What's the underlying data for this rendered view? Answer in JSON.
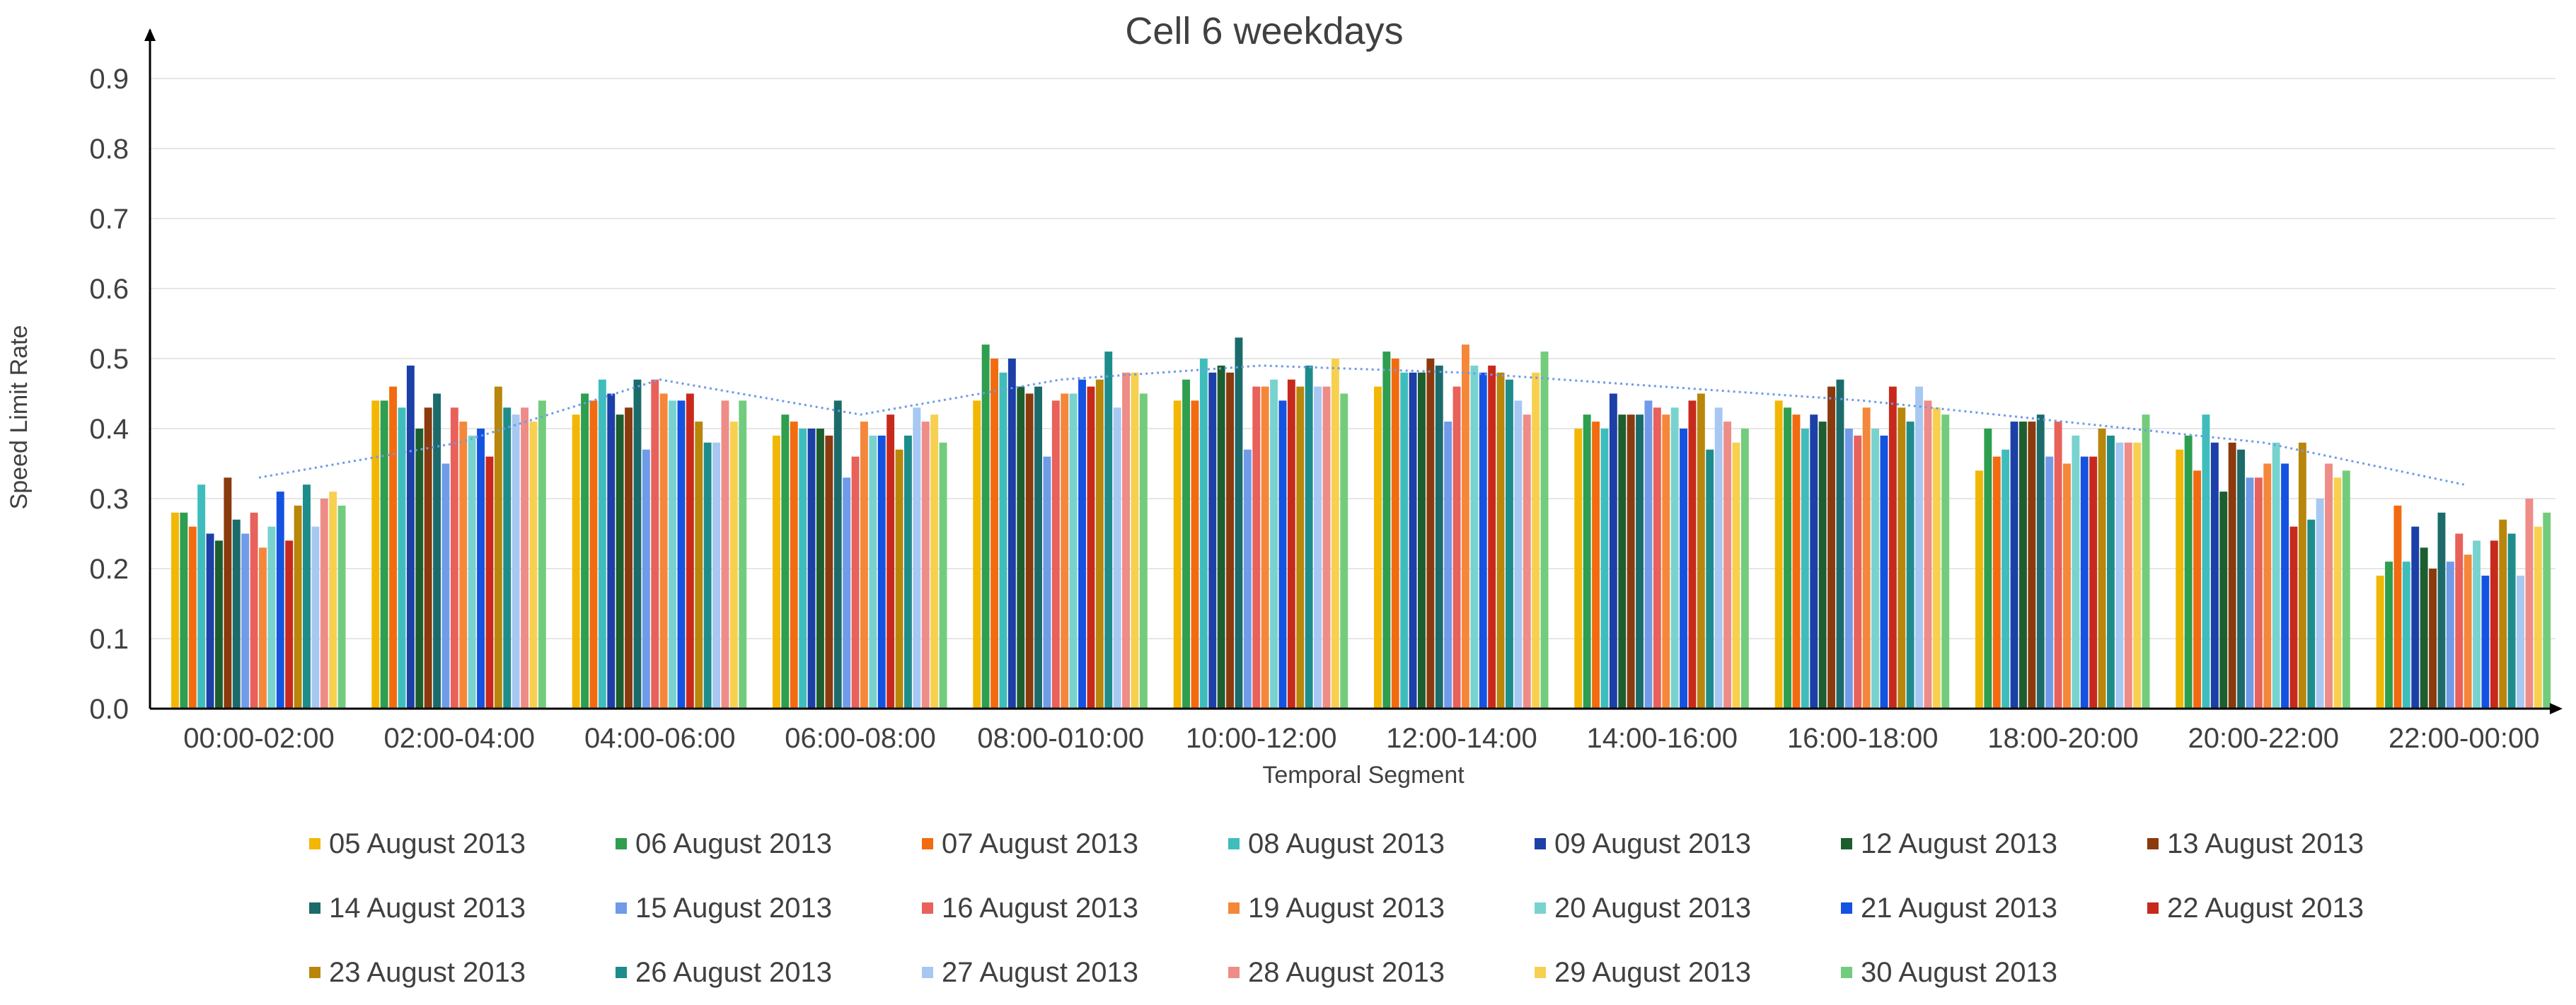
{
  "chart_data": {
    "type": "bar",
    "title": "Cell 6 weekdays",
    "xlabel": "Temporal Segment",
    "ylabel": "Speed Limit Rate",
    "ylim": [
      0,
      0.95
    ],
    "yticks": [
      "0.0",
      "0.1",
      "0.2",
      "0.3",
      "0.4",
      "0.5",
      "0.6",
      "0.7",
      "0.8",
      "0.9"
    ],
    "grid": true,
    "legend_position": "bottom",
    "categories": [
      "00:00-02:00",
      "02:00-04:00",
      "04:00-06:00",
      "06:00-08:00",
      "08:00-010:00",
      "10:00-12:00",
      "12:00-14:00",
      "14:00-16:00",
      "16:00-18:00",
      "18:00-20:00",
      "20:00-22:00",
      "22:00-00:00"
    ],
    "series": [
      {
        "name": "05 August 2013",
        "color": "#F2B705",
        "values": [
          0.28,
          0.44,
          0.42,
          0.39,
          0.44,
          0.44,
          0.46,
          0.4,
          0.44,
          0.34,
          0.37,
          0.19
        ]
      },
      {
        "name": "06 August 2013",
        "color": "#2E9E4F",
        "values": [
          0.28,
          0.44,
          0.45,
          0.42,
          0.52,
          0.47,
          0.51,
          0.42,
          0.43,
          0.4,
          0.39,
          0.21
        ]
      },
      {
        "name": "07 August 2013",
        "color": "#F26B10",
        "values": [
          0.26,
          0.46,
          0.44,
          0.41,
          0.5,
          0.44,
          0.5,
          0.41,
          0.42,
          0.36,
          0.34,
          0.29
        ]
      },
      {
        "name": "08 August 2013",
        "color": "#3FBDBD",
        "values": [
          0.32,
          0.43,
          0.47,
          0.4,
          0.48,
          0.5,
          0.48,
          0.4,
          0.4,
          0.37,
          0.42,
          0.21
        ]
      },
      {
        "name": "09 August 2013",
        "color": "#1C3FA8",
        "values": [
          0.25,
          0.49,
          0.45,
          0.4,
          0.5,
          0.48,
          0.48,
          0.45,
          0.42,
          0.41,
          0.38,
          0.26
        ]
      },
      {
        "name": "12 August 2013",
        "color": "#1D5E2E",
        "values": [
          0.24,
          0.4,
          0.42,
          0.4,
          0.46,
          0.49,
          0.48,
          0.42,
          0.41,
          0.41,
          0.31,
          0.23
        ]
      },
      {
        "name": "13 August 2013",
        "color": "#8B3A0E",
        "values": [
          0.33,
          0.43,
          0.43,
          0.39,
          0.45,
          0.48,
          0.5,
          0.42,
          0.46,
          0.41,
          0.38,
          0.2
        ]
      },
      {
        "name": "14 August 2013",
        "color": "#1C6B6B",
        "values": [
          0.27,
          0.45,
          0.47,
          0.44,
          0.46,
          0.53,
          0.49,
          0.42,
          0.47,
          0.42,
          0.37,
          0.28
        ]
      },
      {
        "name": "15 August 2013",
        "color": "#6F9BE8",
        "values": [
          0.25,
          0.35,
          0.37,
          0.33,
          0.36,
          0.37,
          0.41,
          0.44,
          0.4,
          0.36,
          0.33,
          0.21
        ]
      },
      {
        "name": "16 August 2013",
        "color": "#E8615A",
        "values": [
          0.28,
          0.43,
          0.47,
          0.36,
          0.44,
          0.46,
          0.46,
          0.43,
          0.39,
          0.41,
          0.33,
          0.25
        ]
      },
      {
        "name": "19 August 2013",
        "color": "#F5873A",
        "values": [
          0.23,
          0.41,
          0.45,
          0.41,
          0.45,
          0.46,
          0.52,
          0.42,
          0.43,
          0.35,
          0.35,
          0.22
        ]
      },
      {
        "name": "20 August 2013",
        "color": "#78D3CF",
        "values": [
          0.26,
          0.39,
          0.44,
          0.39,
          0.45,
          0.47,
          0.49,
          0.43,
          0.4,
          0.39,
          0.38,
          0.24
        ]
      },
      {
        "name": "21 August 2013",
        "color": "#1452E0",
        "values": [
          0.31,
          0.4,
          0.44,
          0.39,
          0.47,
          0.44,
          0.48,
          0.4,
          0.39,
          0.36,
          0.35,
          0.19
        ]
      },
      {
        "name": "22 August 2013",
        "color": "#C72A1C",
        "values": [
          0.24,
          0.36,
          0.45,
          0.42,
          0.46,
          0.47,
          0.49,
          0.44,
          0.46,
          0.36,
          0.26,
          0.24
        ]
      },
      {
        "name": "23 August 2013",
        "color": "#B8860B",
        "values": [
          0.29,
          0.46,
          0.41,
          0.37,
          0.47,
          0.46,
          0.48,
          0.45,
          0.43,
          0.4,
          0.38,
          0.27
        ]
      },
      {
        "name": "26 August 2013",
        "color": "#1F8C8C",
        "values": [
          0.32,
          0.43,
          0.38,
          0.39,
          0.51,
          0.49,
          0.47,
          0.37,
          0.41,
          0.39,
          0.27,
          0.25
        ]
      },
      {
        "name": "27 August 2013",
        "color": "#A6C8F2",
        "values": [
          0.26,
          0.42,
          0.38,
          0.43,
          0.43,
          0.46,
          0.44,
          0.43,
          0.46,
          0.38,
          0.3,
          0.19
        ]
      },
      {
        "name": "28 August 2013",
        "color": "#EE8C88",
        "values": [
          0.3,
          0.43,
          0.44,
          0.41,
          0.48,
          0.46,
          0.42,
          0.41,
          0.44,
          0.38,
          0.35,
          0.3
        ]
      },
      {
        "name": "29 August 2013",
        "color": "#F7D050",
        "values": [
          0.31,
          0.41,
          0.41,
          0.42,
          0.48,
          0.5,
          0.48,
          0.38,
          0.43,
          0.38,
          0.33,
          0.26
        ]
      },
      {
        "name": "30 August 2013",
        "color": "#73CC7D",
        "values": [
          0.29,
          0.44,
          0.44,
          0.38,
          0.45,
          0.45,
          0.51,
          0.4,
          0.42,
          0.42,
          0.34,
          0.28
        ]
      }
    ],
    "trendline": {
      "color": "#6F9BE8",
      "values": [
        0.33,
        0.38,
        0.47,
        0.42,
        0.47,
        0.49,
        0.48,
        0.46,
        0.44,
        0.41,
        0.38,
        0.32
      ]
    }
  }
}
